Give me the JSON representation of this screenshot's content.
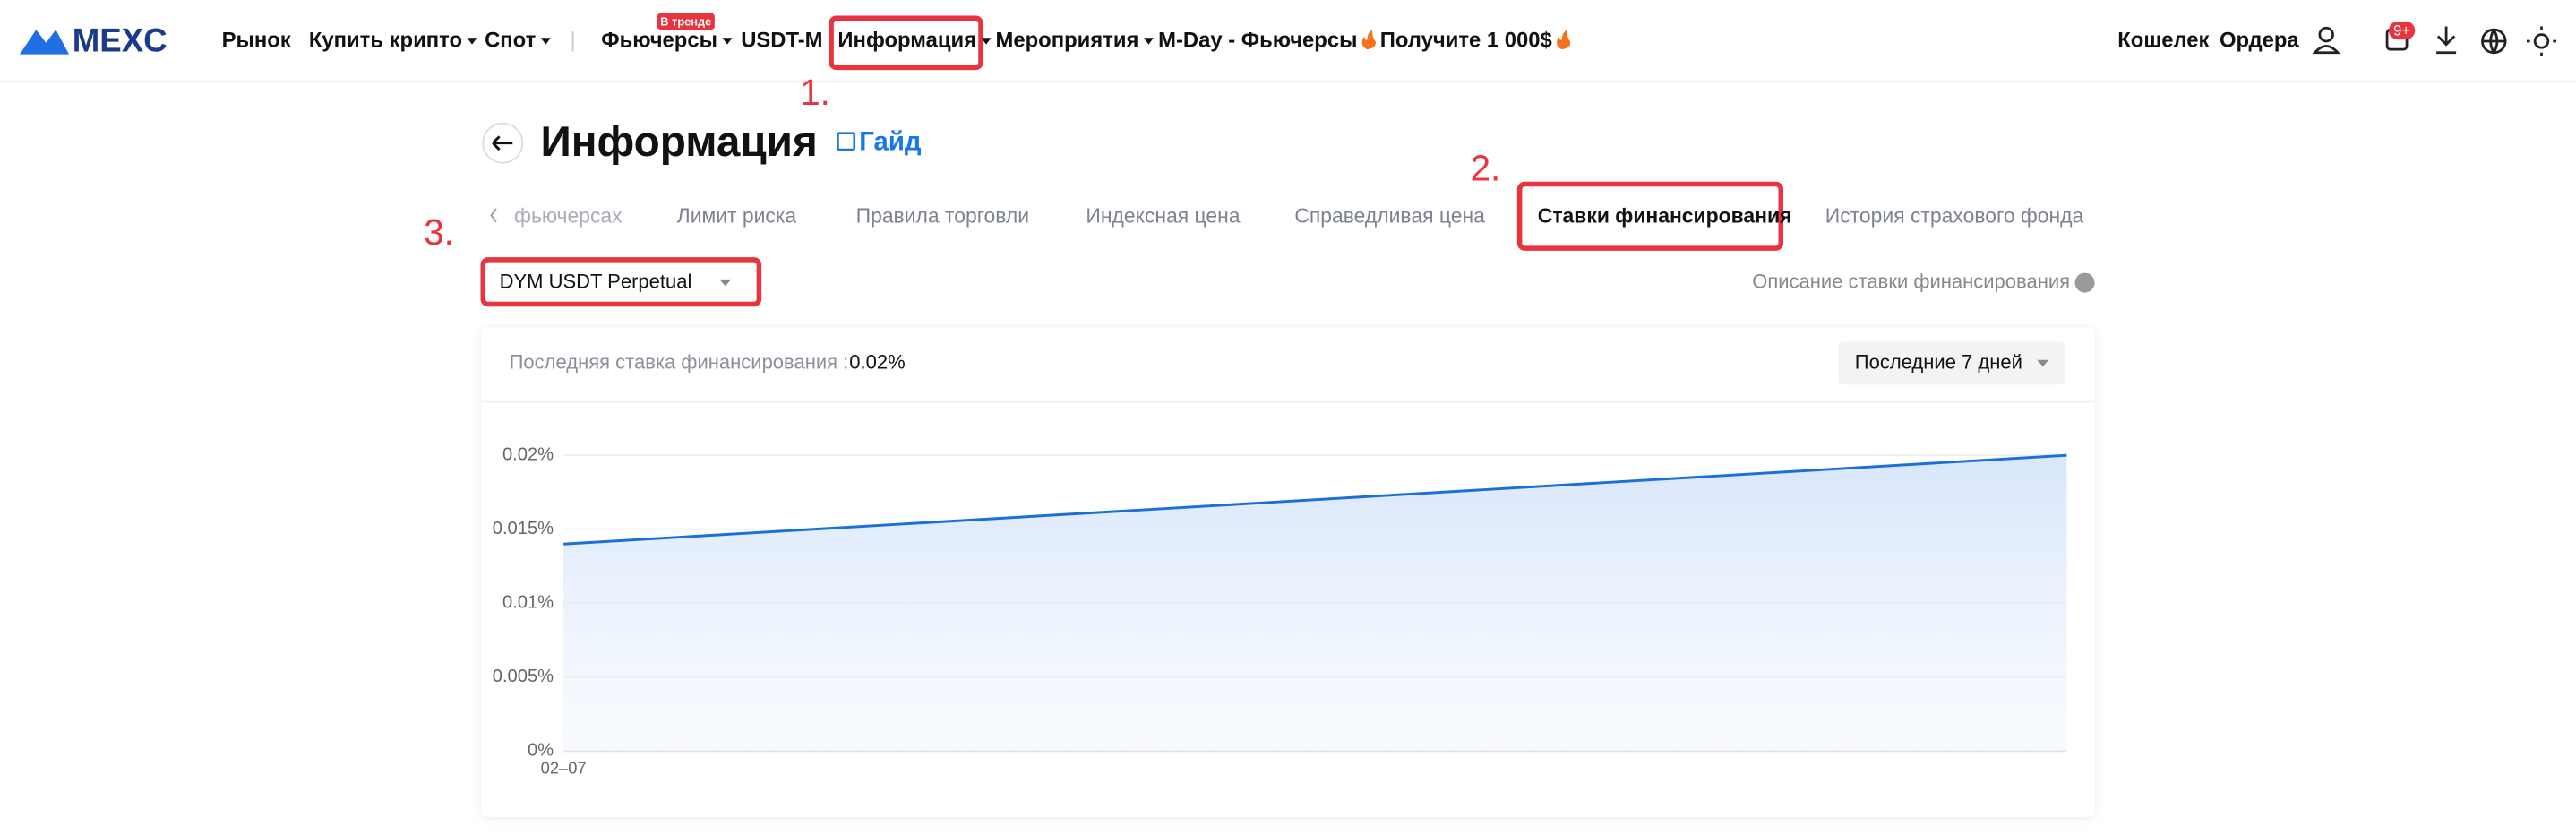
{
  "header": {
    "logo": "MEXC",
    "nav": [
      "Рынок",
      "Купить крипто",
      "Спот",
      "|",
      "Фьючерсы",
      "USDT-M",
      "Информация",
      "Мероприятия",
      "M-Day - Фьючерсы",
      "Получите 1 000$"
    ],
    "badge": "В тренде",
    "right": [
      "Кошелек",
      "Ордера"
    ],
    "notifications": "9+"
  },
  "page": {
    "title": "Информация",
    "guide": "Гайд",
    "tabs": [
      "фьючерсах",
      "Лимит риска",
      "Правила торговли",
      "Индексная цена",
      "Справедливая цена",
      "Ставки финансирования",
      "История страхового фонда"
    ],
    "selector": "DYM USDT Perpetual",
    "description_link": "Описание ставки финансирования",
    "last_rate_label": "Последняя ставка финансирования :",
    "last_rate": "0.02%",
    "period": "Последние 7 дней"
  },
  "annotations": [
    "1.",
    "2.",
    "3."
  ],
  "chart_data": {
    "type": "line",
    "categories": [
      "02–07",
      null
    ],
    "series": [
      {
        "name": "DYM USDT Perpetual",
        "color": "#1b6fd9",
        "values": [
          0.014,
          0.02
        ]
      }
    ],
    "ylim": [
      0,
      0.02
    ],
    "yticks": [
      {
        "value": 0,
        "label": "0%"
      },
      {
        "value": 0.005,
        "label": "0.005%"
      },
      {
        "value": 0.01,
        "label": "0.01%"
      },
      {
        "value": 0.015,
        "label": "0.015%"
      },
      {
        "value": 0.02,
        "label": "0.02%"
      }
    ],
    "grid": true
  }
}
